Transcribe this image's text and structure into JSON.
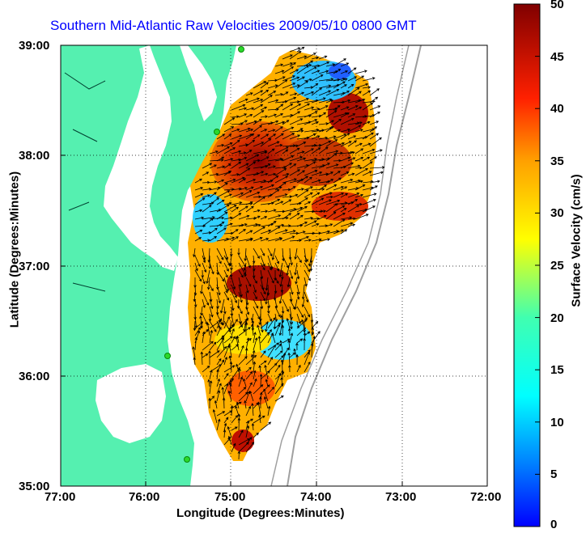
{
  "title": "Southern Mid-Atlantic Raw Velocities 2009/05/10 0800 GMT",
  "xlabel": "Longitude (Degrees:Minutes)",
  "ylabel": "Latitude (Degrees:Minutes)",
  "colorbar_label": "Surface Velocity (cm/s)",
  "x_ticks": [
    "77:00",
    "76:00",
    "75:00",
    "74:00",
    "73:00",
    "72:00"
  ],
  "y_ticks": [
    "39:00",
    "38:00",
    "37:00",
    "36:00",
    "35:00"
  ],
  "colorbar_ticks": [
    "50",
    "45",
    "40",
    "35",
    "30",
    "25",
    "20",
    "15",
    "10",
    "5",
    "0"
  ],
  "colors": {
    "land": "#55f0b0",
    "title": "#0000ff",
    "station": "#2bd92b",
    "bathymetry": "#a0a0a0"
  },
  "map": {
    "lon_range": [
      -77,
      -72
    ],
    "lat_range": [
      35,
      39
    ],
    "colorbar_range": [
      0,
      50
    ],
    "grid": "dotted",
    "stations": [
      {
        "lon": -75.1,
        "lat": 38.98
      },
      {
        "lon": -75.3,
        "lat": 38.22
      },
      {
        "lon": -75.75,
        "lat": 36.2
      },
      {
        "lon": -75.5,
        "lat": 35.27
      }
    ]
  }
}
